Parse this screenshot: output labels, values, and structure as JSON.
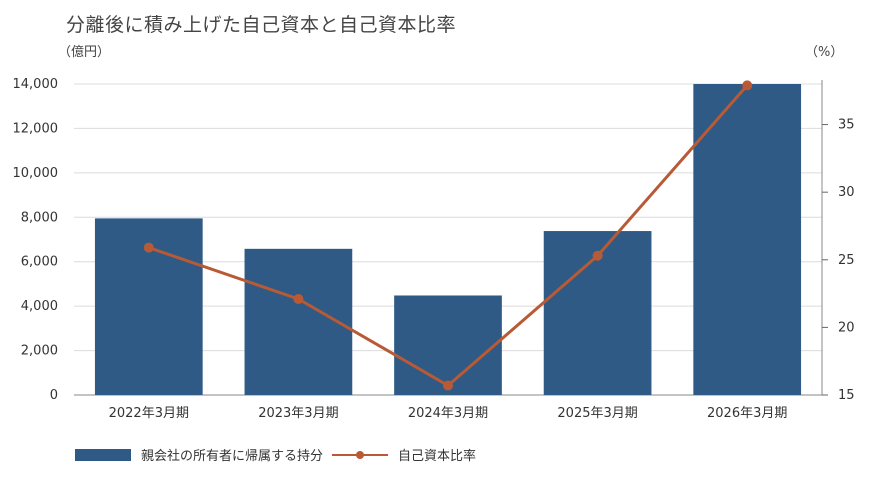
{
  "chart": {
    "title": "分離後に積み上げた自己資本と自己資本比率",
    "unit_left": "（億円）",
    "unit_right": "（%）"
  },
  "chart_data": {
    "type": "bar+line",
    "categories": [
      "2022年3月期",
      "2023年3月期",
      "2024年3月期",
      "2025年3月期",
      "2026年3月期"
    ],
    "series": [
      {
        "name": "親会社の所有者に帰属する持分",
        "type": "bar",
        "axis": "left",
        "color": "#2e5a85",
        "values": [
          7950,
          6580,
          4480,
          7380,
          14000
        ]
      },
      {
        "name": "自己資本比率",
        "type": "line",
        "axis": "right",
        "color": "#b85a36",
        "values": [
          25.9,
          22.1,
          15.7,
          25.3,
          37.9
        ]
      }
    ],
    "y_left": {
      "min": 0,
      "max": 14000,
      "ticks": [
        0,
        2000,
        4000,
        6000,
        8000,
        10000,
        12000,
        14000
      ],
      "tick_labels": [
        "0",
        "2,000",
        "4,000",
        "6,000",
        "8,000",
        "10,000",
        "12,000",
        "14,000"
      ]
    },
    "y_right": {
      "ticks": [
        15,
        20,
        25,
        30,
        35
      ],
      "tick_labels": [
        "15",
        "20",
        "25",
        "30",
        "35"
      ]
    },
    "grid": true,
    "legend_position": "bottom-left"
  }
}
